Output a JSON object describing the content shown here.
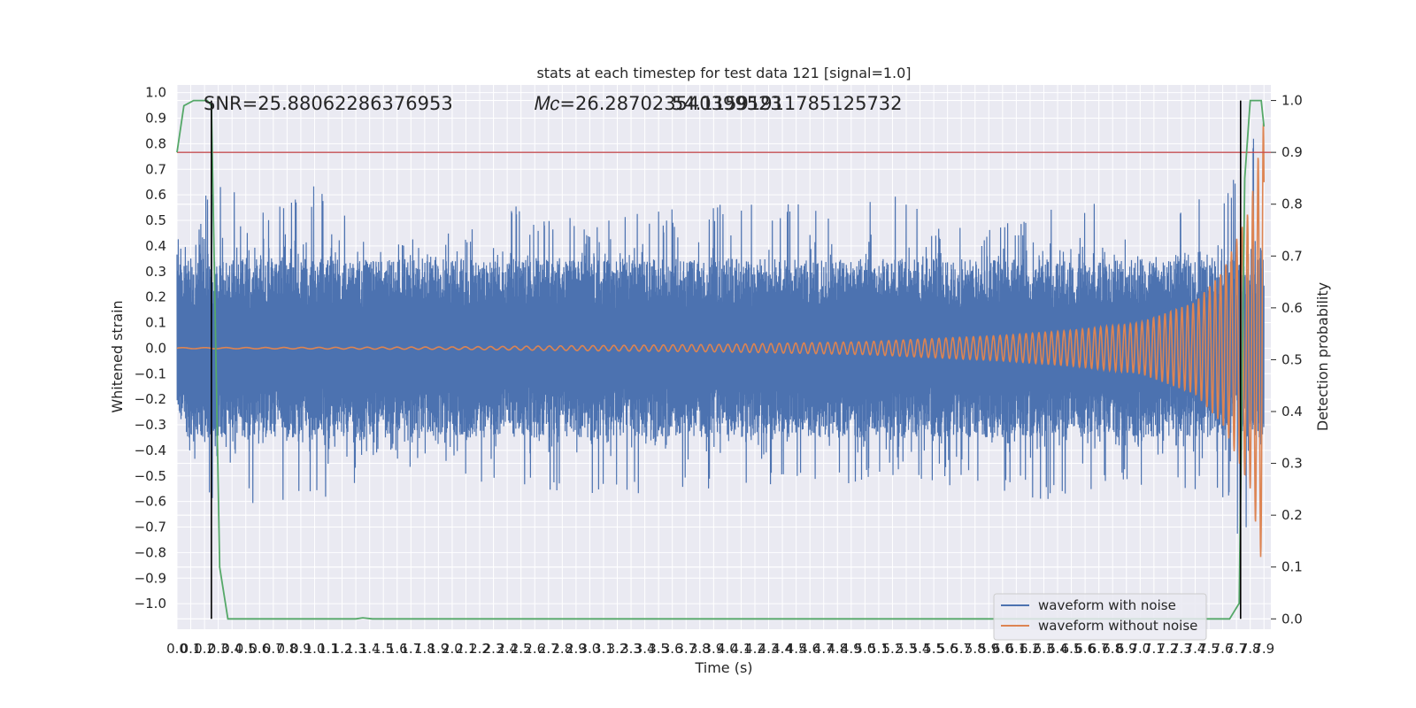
{
  "chart_data": {
    "type": "line",
    "title": "stats at each timestep for test data 121 [signal=1.0]",
    "xlabel": "Time (s)",
    "ylabel": "Whitened strain",
    "y2label": "Detection probability",
    "xlim": [
      0.0,
      7.95
    ],
    "ylim": [
      -1.1,
      1.03
    ],
    "y2lim": [
      -0.02,
      1.03
    ],
    "grid": true,
    "x_ticks": [
      0.0,
      0.1,
      0.2,
      0.3,
      0.4,
      0.5,
      0.6,
      0.7,
      0.8,
      0.9,
      1.0,
      1.1,
      1.2,
      1.3,
      1.4,
      1.5,
      1.6,
      1.7,
      1.8,
      1.9,
      2.0,
      2.1,
      2.2,
      2.3,
      2.4,
      2.5,
      2.6,
      2.7,
      2.8,
      2.9,
      3.0,
      3.1,
      3.2,
      3.3,
      3.4,
      3.5,
      3.6,
      3.7,
      3.8,
      3.9,
      4.0,
      4.1,
      4.2,
      4.3,
      4.4,
      4.5,
      4.6,
      4.7,
      4.8,
      4.9,
      5.0,
      5.1,
      5.2,
      5.3,
      5.4,
      5.5,
      5.6,
      5.7,
      5.8,
      5.9,
      6.0,
      6.1,
      6.2,
      6.3,
      6.4,
      6.5,
      6.6,
      6.7,
      6.8,
      6.9,
      7.0,
      7.1,
      7.2,
      7.3,
      7.4,
      7.5,
      7.6,
      7.7,
      7.8,
      7.9
    ],
    "x_ticklabels": [
      "0.0",
      "0.1",
      "0.2",
      "0.3",
      "0.4",
      "0.5",
      "0.6",
      "0.7",
      "0.8",
      "0.9",
      "1.0",
      "1.1",
      "1.2",
      "1.3",
      "1.4",
      "1.5",
      "1.6",
      "1.7",
      "1.8",
      "1.9",
      "2.0",
      "2.1",
      "2.2",
      "2.3",
      "2.4",
      "2.5",
      "2.6",
      "2.7",
      "2.8",
      "2.9",
      "3.0",
      "3.1",
      "3.2",
      "3.3",
      "3.4",
      "3.5",
      "3.6",
      "3.7",
      "3.8",
      "3.9",
      "4.0",
      "4.1",
      "4.2",
      "4.3",
      "4.4",
      "4.5",
      "4.6",
      "4.7",
      "4.8",
      "4.9",
      "5.0",
      "5.1",
      "5.2",
      "5.3",
      "5.4",
      "5.5",
      "5.6",
      "5.7",
      "5.8",
      "5.9",
      "6.0",
      "6.1",
      "6.2",
      "6.3",
      "6.4",
      "6.5",
      "6.6",
      "6.7",
      "6.8",
      "6.9",
      "7.0",
      "7.1",
      "7.2",
      "7.3",
      "7.4",
      "7.5",
      "7.6",
      "7.7",
      "7.8",
      "7.9"
    ],
    "y_ticks": [
      1.0,
      0.9,
      0.8,
      0.7,
      0.6,
      0.5,
      0.4,
      0.3,
      0.2,
      0.1,
      0.0,
      -0.1,
      -0.2,
      -0.3,
      -0.4,
      -0.5,
      -0.6,
      -0.7,
      -0.8,
      -0.9,
      -1.0
    ],
    "y_ticklabels": [
      "1.0",
      "0.9",
      "0.8",
      "0.7",
      "0.6",
      "0.5",
      "0.4",
      "0.3",
      "0.2",
      "0.1",
      "0.0",
      "−0.1",
      "−0.2",
      "−0.3",
      "−0.4",
      "−0.5",
      "−0.6",
      "−0.7",
      "−0.8",
      "−0.9",
      "−1.0"
    ],
    "y2_ticks": [
      1.0,
      0.9,
      0.8,
      0.7,
      0.6,
      0.5,
      0.4,
      0.3,
      0.2,
      0.1,
      0.0
    ],
    "y2_ticklabels": [
      "1.0",
      "0.9",
      "0.8",
      "0.7",
      "0.6",
      "0.5",
      "0.4",
      "0.3",
      "0.2",
      "0.1",
      "0.0"
    ],
    "annotations": {
      "snr": "SNR=25.88062286376953",
      "mc_overlap": "𝑀𝑐=26.287023540399523",
      "mc_extra": "54.11591911785125732"
    },
    "series": [
      {
        "name": "waveform with noise",
        "axis": "left",
        "color": "#4c72b0",
        "envelope_upper": [
          [
            0.0,
            0.47
          ],
          [
            0.1,
            0.35
          ],
          [
            0.2,
            0.62
          ],
          [
            0.4,
            0.66
          ],
          [
            0.5,
            0.5
          ],
          [
            0.8,
            0.62
          ],
          [
            1.1,
            0.66
          ],
          [
            1.4,
            0.48
          ],
          [
            2.0,
            0.45
          ],
          [
            2.45,
            0.61
          ],
          [
            2.6,
            0.52
          ],
          [
            3.2,
            0.52
          ],
          [
            3.8,
            0.56
          ],
          [
            4.5,
            0.58
          ],
          [
            5.2,
            0.6
          ],
          [
            5.6,
            0.48
          ],
          [
            6.1,
            0.5
          ],
          [
            6.5,
            0.58
          ],
          [
            7.0,
            0.55
          ],
          [
            7.4,
            0.6
          ],
          [
            7.55,
            0.6
          ],
          [
            7.75,
            0.7
          ],
          [
            7.9,
            0.95
          ]
        ],
        "envelope_lower": [
          [
            0.0,
            -0.2
          ],
          [
            0.1,
            -0.47
          ],
          [
            0.2,
            -0.62
          ],
          [
            0.45,
            -0.63
          ],
          [
            1.2,
            -0.64
          ],
          [
            1.4,
            -0.44
          ],
          [
            2.0,
            -0.5
          ],
          [
            2.8,
            -0.61
          ],
          [
            3.1,
            -0.62
          ],
          [
            3.5,
            -0.55
          ],
          [
            4.5,
            -0.57
          ],
          [
            5.2,
            -0.5
          ],
          [
            6.3,
            -0.6
          ],
          [
            6.9,
            -0.55
          ],
          [
            7.4,
            -0.58
          ],
          [
            7.6,
            -0.6
          ],
          [
            7.8,
            -0.85
          ],
          [
            7.9,
            -1.0
          ]
        ]
      },
      {
        "name": "waveform without noise",
        "axis": "left",
        "color": "#dd8452",
        "amplitude": [
          [
            0.0,
            0.002
          ],
          [
            1.0,
            0.003
          ],
          [
            2.0,
            0.005
          ],
          [
            3.0,
            0.01
          ],
          [
            4.0,
            0.015
          ],
          [
            5.0,
            0.025
          ],
          [
            6.0,
            0.05
          ],
          [
            6.5,
            0.07
          ],
          [
            7.0,
            0.1
          ],
          [
            7.4,
            0.18
          ],
          [
            7.6,
            0.3
          ],
          [
            7.8,
            0.55
          ],
          [
            7.9,
            0.9
          ]
        ]
      },
      {
        "name": "detection probability",
        "axis": "right",
        "color": "#55a868",
        "points": [
          [
            0.0,
            0.9
          ],
          [
            0.05,
            0.99
          ],
          [
            0.12,
            1.0
          ],
          [
            0.22,
            1.0
          ],
          [
            0.25,
            0.99
          ],
          [
            0.31,
            0.1
          ],
          [
            0.37,
            0.0
          ],
          [
            1.3,
            0.0
          ],
          [
            1.35,
            0.002
          ],
          [
            1.42,
            0.0
          ],
          [
            7.65,
            0.0
          ],
          [
            7.72,
            0.03
          ],
          [
            7.76,
            0.85
          ],
          [
            7.8,
            1.0
          ],
          [
            7.88,
            1.0
          ],
          [
            7.9,
            0.95
          ]
        ]
      },
      {
        "name": "threshold",
        "axis": "right",
        "color": "#c44e52",
        "value": 0.9
      }
    ],
    "vlines": [
      0.25,
      7.73
    ],
    "legend": {
      "placement": "lower right",
      "entries": [
        "waveform with noise",
        "waveform without noise"
      ]
    }
  }
}
